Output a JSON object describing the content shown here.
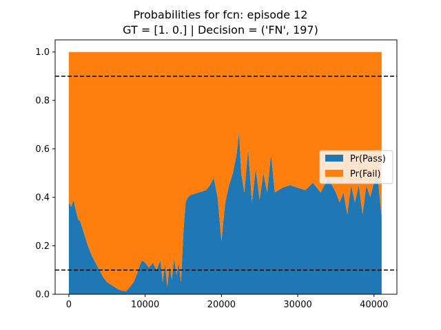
{
  "chart_data": {
    "type": "area",
    "title": "Probabilities for fcn: episode 12",
    "subtitle": "GT = [1. 0.] | Decision = ('FN', 197)",
    "xlabel": "",
    "ylabel": "",
    "xlim": [
      -1800,
      43000
    ],
    "ylim": [
      0,
      1.05
    ],
    "x_ticks": [
      0,
      10000,
      20000,
      30000,
      40000
    ],
    "x_tick_labels": [
      "0",
      "10000",
      "20000",
      "30000",
      "40000"
    ],
    "y_ticks": [
      0.0,
      0.2,
      0.4,
      0.6,
      0.8,
      1.0
    ],
    "y_tick_labels": [
      "0.0",
      "0.2",
      "0.4",
      "0.6",
      "0.8",
      "1.0"
    ],
    "stacked": true,
    "x": [
      0,
      300,
      600,
      900,
      1200,
      1500,
      2000,
      2500,
      3000,
      3500,
      4000,
      4500,
      5000,
      5500,
      6000,
      6500,
      7000,
      7500,
      8000,
      8500,
      9000,
      9300,
      9600,
      10000,
      10500,
      11000,
      11500,
      12000,
      12300,
      12600,
      12900,
      13200,
      13500,
      13800,
      14100,
      14400,
      14700,
      15000,
      15300,
      15600,
      16000,
      17000,
      18000,
      18500,
      19000,
      19500,
      20000,
      20500,
      21000,
      21500,
      22000,
      22300,
      22600,
      23000,
      23500,
      24000,
      24500,
      25000,
      25500,
      26000,
      26500,
      27000,
      28000,
      29000,
      30000,
      31000,
      32000,
      33000,
      34000,
      35000,
      35500,
      36000,
      36500,
      37000,
      37500,
      38000,
      38500,
      39000,
      39500,
      40000,
      40500,
      41000
    ],
    "series": [
      {
        "name": "Pr(Pass)",
        "color": "#1f77b4",
        "values": [
          0.38,
          0.36,
          0.39,
          0.35,
          0.31,
          0.3,
          0.25,
          0.2,
          0.16,
          0.13,
          0.1,
          0.07,
          0.05,
          0.04,
          0.03,
          0.02,
          0.015,
          0.012,
          0.03,
          0.05,
          0.09,
          0.12,
          0.14,
          0.13,
          0.11,
          0.13,
          0.1,
          0.14,
          0.05,
          0.13,
          0.03,
          0.12,
          0.06,
          0.15,
          0.08,
          0.13,
          0.05,
          0.25,
          0.38,
          0.4,
          0.41,
          0.42,
          0.43,
          0.45,
          0.48,
          0.4,
          0.22,
          0.38,
          0.45,
          0.5,
          0.58,
          0.67,
          0.5,
          0.42,
          0.6,
          0.38,
          0.52,
          0.39,
          0.5,
          0.42,
          0.58,
          0.42,
          0.44,
          0.45,
          0.44,
          0.43,
          0.46,
          0.42,
          0.48,
          0.42,
          0.38,
          0.42,
          0.33,
          0.45,
          0.38,
          0.45,
          0.33,
          0.45,
          0.4,
          0.46,
          0.48,
          0.32
        ]
      },
      {
        "name": "Pr(Fail)",
        "color": "#ff7f0e",
        "values": [
          0.62,
          0.64,
          0.61,
          0.65,
          0.69,
          0.7,
          0.75,
          0.8,
          0.84,
          0.87,
          0.9,
          0.93,
          0.95,
          0.96,
          0.97,
          0.98,
          0.985,
          0.988,
          0.97,
          0.95,
          0.91,
          0.88,
          0.86,
          0.87,
          0.89,
          0.87,
          0.9,
          0.86,
          0.95,
          0.87,
          0.97,
          0.88,
          0.94,
          0.85,
          0.92,
          0.87,
          0.95,
          0.75,
          0.62,
          0.6,
          0.59,
          0.58,
          0.57,
          0.55,
          0.52,
          0.6,
          0.78,
          0.62,
          0.55,
          0.5,
          0.42,
          0.33,
          0.5,
          0.58,
          0.4,
          0.62,
          0.48,
          0.61,
          0.5,
          0.58,
          0.42,
          0.58,
          0.56,
          0.55,
          0.56,
          0.57,
          0.54,
          0.58,
          0.52,
          0.58,
          0.62,
          0.58,
          0.67,
          0.55,
          0.62,
          0.55,
          0.67,
          0.55,
          0.6,
          0.54,
          0.52,
          0.68
        ]
      }
    ],
    "hlines": [
      {
        "y": 0.9,
        "style": "dashed",
        "color": "#000000"
      },
      {
        "y": 0.1,
        "style": "dashed",
        "color": "#000000"
      }
    ],
    "legend": {
      "placement": "center-right",
      "entries": [
        "Pr(Pass)",
        "Pr(Fail)"
      ]
    },
    "grid": false
  }
}
